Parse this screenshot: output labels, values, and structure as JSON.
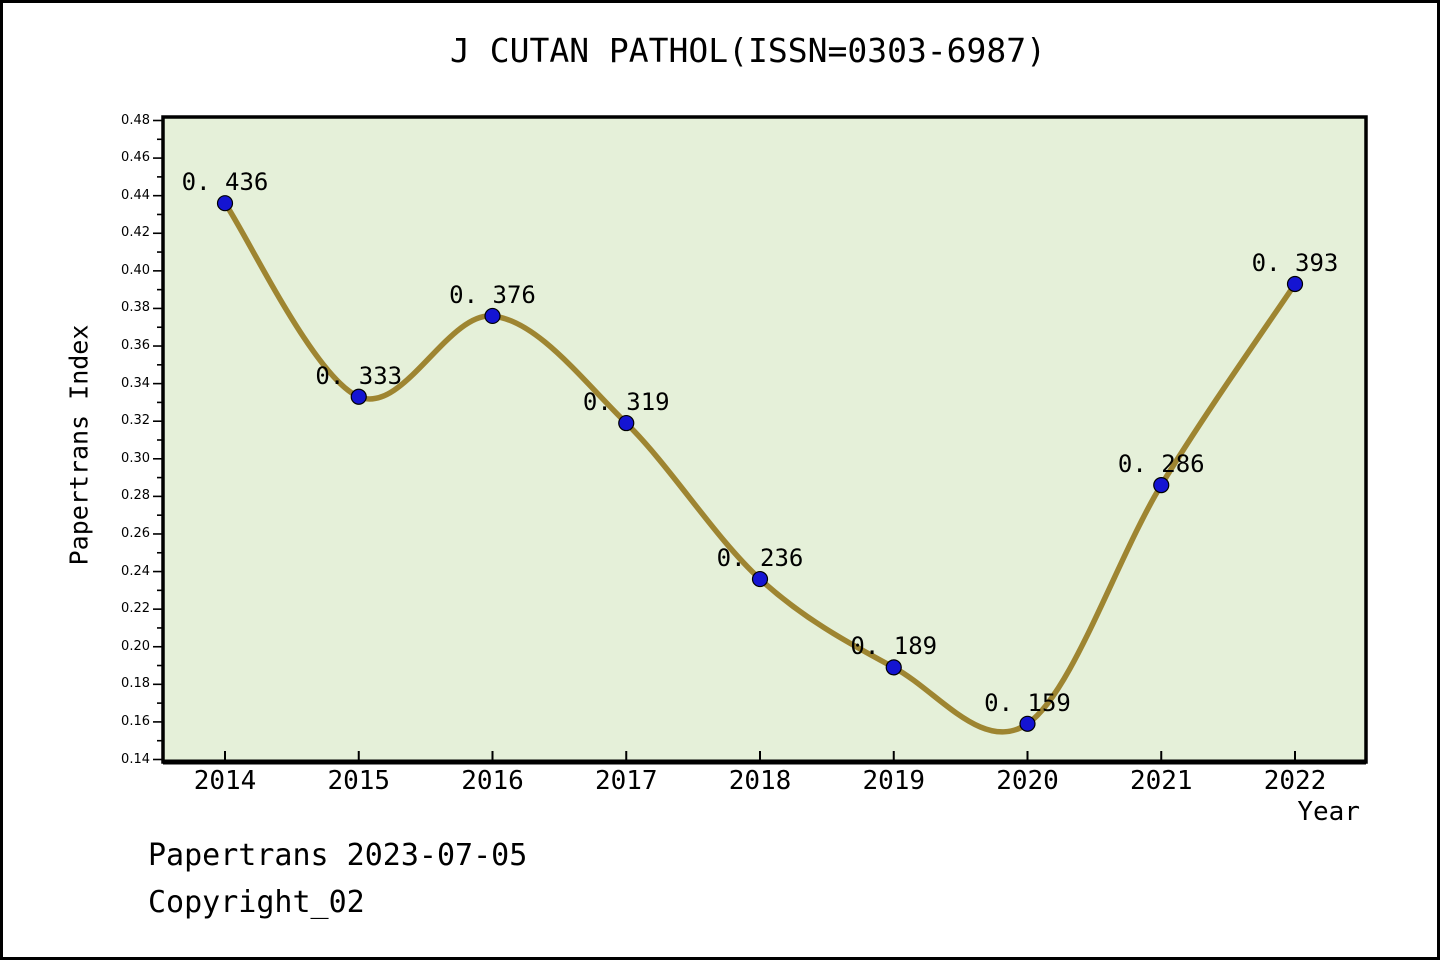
{
  "title": "J CUTAN PATHOL(ISSN=0303-6987)",
  "footer": {
    "line1": "Papertrans 2023-07-05",
    "line2": "Copyright_02"
  },
  "chart_data": {
    "type": "line",
    "title": "J CUTAN PATHOL(ISSN=0303-6987)",
    "xlabel": "Year",
    "ylabel": "Papertrans Index",
    "categories": [
      "2014",
      "2015",
      "2016",
      "2017",
      "2018",
      "2019",
      "2020",
      "2021",
      "2022"
    ],
    "series": [
      {
        "name": "Papertrans Index",
        "values": [
          0.436,
          0.333,
          0.376,
          0.319,
          0.236,
          0.189,
          0.159,
          0.286,
          0.393
        ]
      }
    ],
    "point_labels": [
      "0. 436",
      "0. 333",
      "0. 376",
      "0. 319",
      "0. 236",
      "0. 189",
      "0. 159",
      "0. 286",
      "0. 393"
    ],
    "ylim": [
      0.14,
      0.48
    ],
    "ytick_major_step": 0.02,
    "ytick_minor_step": 0.01,
    "grid": false,
    "smooth": true,
    "legend_position": "none",
    "colors": {
      "line": "#9e8531",
      "marker_fill": "#1414d2",
      "marker_edge": "#000000",
      "plot_bg": "#e5f0d9",
      "figure_bg": "#ffffff",
      "axis": "#000000",
      "text": "#000000"
    }
  }
}
